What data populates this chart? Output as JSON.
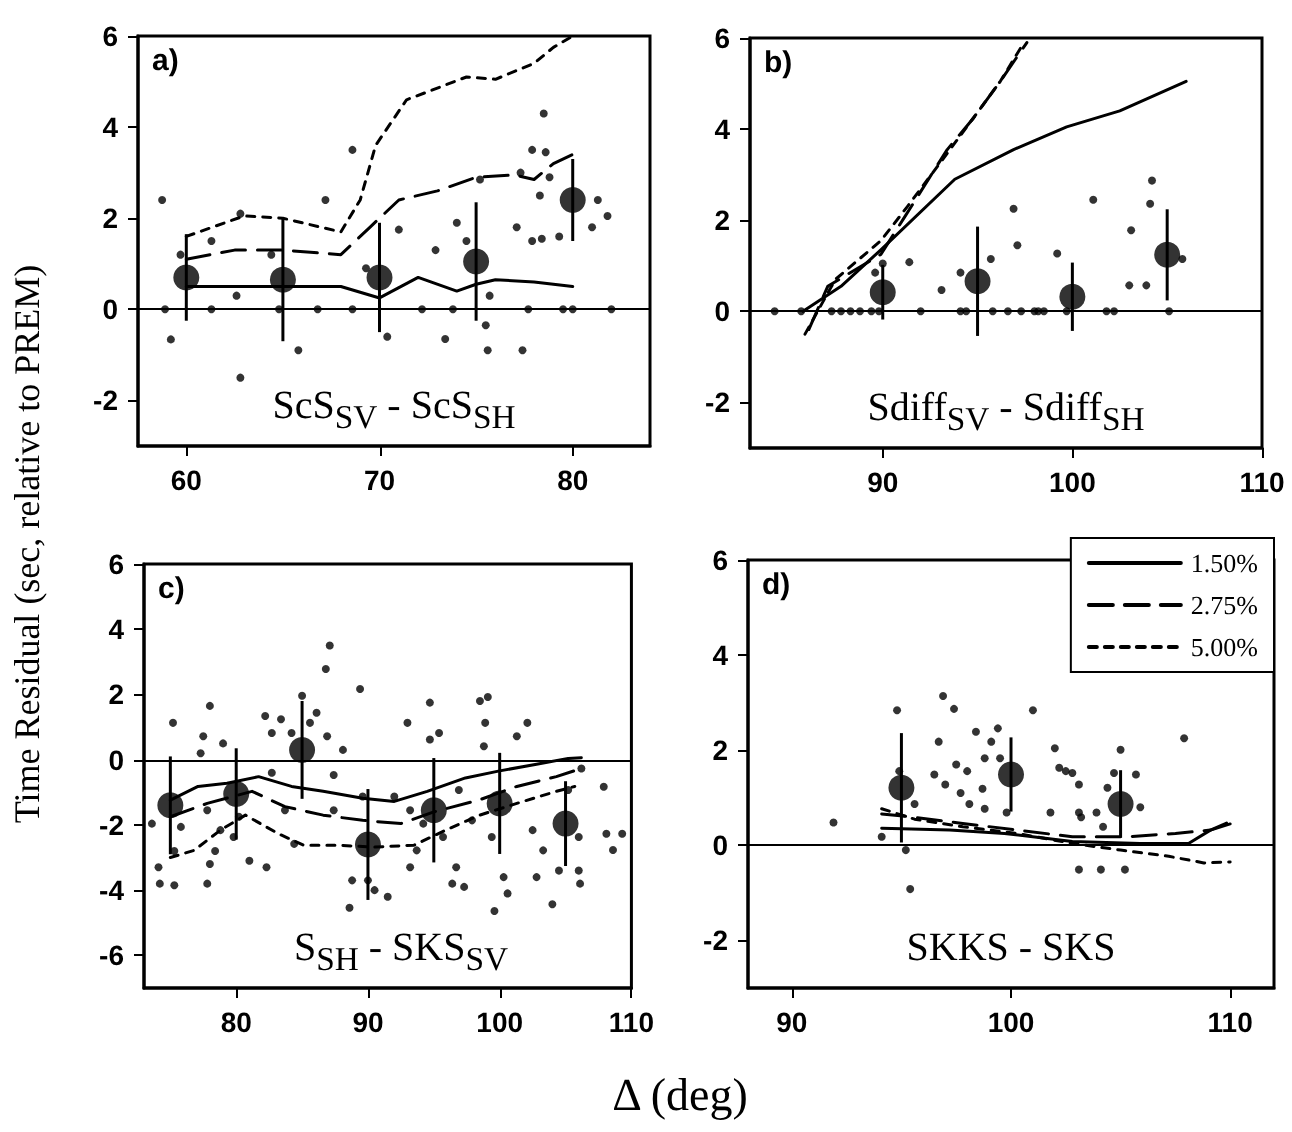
{
  "chart_data": [
    {
      "type": "scatter",
      "ylabel": "Time Residual (sec, relative to PREM)",
      "annotations": [
        "a)",
        "ScS$_{SV}$ - ScS$_{SH}$"
      ],
      "xlim": [
        57.5,
        84
      ],
      "xticks": [
        60,
        70,
        80
      ],
      "ylim": [
        -3,
        6
      ],
      "yticks": [
        -2,
        0,
        2,
        4,
        6
      ],
      "grid": false,
      "ref_lines": [
        {
          "axis": "y",
          "value": 0,
          "color": "#000000"
        }
      ],
      "series": [
        {
          "type": "scatter",
          "marker": "circle",
          "color": "#000000",
          "x": [
            58.75,
            59.2,
            58.9,
            59.7,
            61.3,
            61.3,
            62.8,
            62.6,
            62.8,
            64.8,
            64.4,
            65.8,
            66.8,
            67.2,
            68.6,
            68.6,
            69.3,
            70.4,
            71,
            72.2,
            72.9,
            73.4,
            74,
            74.5,
            73.8,
            75.2,
            75.5,
            75.6,
            75.7,
            77.1,
            77.4,
            77.7,
            77.3,
            77.9,
            78.5,
            78.6,
            78.3,
            77.9,
            78.4,
            79.3,
            78.8,
            79.5,
            81.3,
            81.8,
            81,
            80,
            82
          ],
          "values": [
            2.4,
            -0.66,
            0,
            1.2,
            0,
            1.5,
            -1.5,
            0.3,
            2.1,
            0,
            1.2,
            -0.9,
            0,
            2.4,
            3.5,
            0,
            0.9,
            -0.6,
            1.75,
            0,
            1.3,
            -0.65,
            1.9,
            1.5,
            0,
            2.85,
            -0.35,
            -0.9,
            0.3,
            1.8,
            -0.9,
            0,
            3,
            3.5,
            4.3,
            3.45,
            2.5,
            1.5,
            1.55,
            1.6,
            2.9,
            0,
            2.4,
            2.05,
            1.8,
            0,
            0
          ]
        },
        {
          "type": "scatter",
          "marker": "circle",
          "color": "#000000",
          "x": [
            60,
            65,
            70,
            75,
            80
          ],
          "values": [
            0.7,
            0.65,
            0.7,
            1.05,
            2.4
          ],
          "errors": [
            0.95,
            1.35,
            1.2,
            1.3,
            0.9
          ]
        },
        {
          "type": "line",
          "marker": "none",
          "line_style": "solid",
          "color": "#000000",
          "x": [
            60,
            65,
            68,
            70,
            72,
            74,
            75,
            76,
            78,
            80
          ],
          "values": [
            0.5,
            0.5,
            0.5,
            0.25,
            0.7,
            0.4,
            0.55,
            0.65,
            0.6,
            0.5
          ]
        },
        {
          "type": "line",
          "marker": "none",
          "line_style": "dashed",
          "color": "#000000",
          "x": [
            60,
            62.5,
            65,
            68,
            69.5,
            71,
            73,
            75,
            77,
            78,
            79,
            80
          ],
          "values": [
            1.1,
            1.3,
            1.3,
            1.2,
            1.8,
            2.4,
            2.6,
            2.9,
            2.95,
            2.85,
            3.2,
            3.4
          ]
        },
        {
          "type": "line",
          "marker": "none",
          "line_style": "dotted",
          "color": "#000000",
          "x": [
            60,
            63,
            65,
            66,
            68,
            69,
            69.8,
            71.4,
            74.5,
            76,
            78,
            79,
            80
          ],
          "values": [
            1.6,
            2.05,
            2,
            1.9,
            1.7,
            2.4,
            3.6,
            4.6,
            5.1,
            5.05,
            5.4,
            5.75,
            6
          ]
        }
      ]
    },
    {
      "type": "scatter",
      "annotations": [
        "b)",
        "Sdiff$_{SV}$ - Sdiff$_{SH}$"
      ],
      "xlim": [
        83,
        110
      ],
      "xticks": [
        90,
        100,
        110
      ],
      "ylim": [
        -3,
        6
      ],
      "yticks": [
        -2,
        0,
        2,
        4,
        6
      ],
      "grid": false,
      "ref_lines": [
        {
          "axis": "y",
          "value": 0,
          "color": "#000000"
        }
      ],
      "series": [
        {
          "type": "scatter",
          "marker": "circle",
          "color": "#000000",
          "x": [
            84.3,
            85.7,
            87.3,
            87.8,
            88.3,
            88.8,
            89.4,
            89.8,
            92,
            94.1,
            94.4,
            95.8,
            96.6,
            97.3,
            98,
            98.2,
            98.5,
            99.7,
            101.8,
            102.2,
            105.1,
            89.6,
            90,
            91.4,
            93.1,
            94.1,
            95.7,
            96.9,
            97.1,
            99.2,
            100,
            101.1,
            103.1,
            103,
            103.9,
            104.2,
            104.1,
            105.8
          ],
          "values": [
            0,
            0,
            0,
            0,
            0,
            0,
            0,
            0,
            0,
            0,
            0,
            0,
            0,
            0,
            0,
            0,
            0,
            0,
            0,
            0,
            0,
            0.85,
            1.05,
            1.08,
            0.47,
            0.85,
            1.15,
            2.25,
            1.45,
            1.27,
            null,
            2.45,
            1.78,
            0.57,
            0.57,
            2.87,
            2.36,
            1.15
          ]
        },
        {
          "type": "scatter",
          "marker": "circle",
          "color": "#000000",
          "x": [
            90,
            95,
            100,
            105
          ],
          "values": [
            0.42,
            0.66,
            0.32,
            1.24
          ],
          "errors": [
            0.6,
            1.2,
            0.75,
            1
          ]
        },
        {
          "type": "line",
          "marker": "none",
          "line_style": "solid",
          "color": "#000000",
          "x": [
            85.8,
            87.8,
            89.9,
            93.8,
            96.9,
            99.7,
            102.5,
            106
          ],
          "values": [
            0,
            0.55,
            1.35,
            2.9,
            3.55,
            4.05,
            4.4,
            5.05
          ]
        },
        {
          "type": "line",
          "marker": "none",
          "line_style": "dashed",
          "color": "#000000",
          "x": [
            86.1,
            87.1,
            89.9,
            91.2,
            93.4,
            94.8,
            96.2,
            97.6
          ],
          "values": [
            -0.4,
            0.55,
            1.25,
            2.1,
            3.55,
            4.25,
            5.05,
            5.9
          ]
        },
        {
          "type": "line",
          "marker": "none",
          "line_style": "dotted",
          "color": "#000000",
          "x": [
            85.9,
            87.5,
            89.9,
            91.3,
            93.1,
            94.7,
            96.2,
            97.3
          ],
          "values": [
            -0.5,
            0.7,
            1.55,
            2.3,
            3.3,
            4.2,
            5.05,
            5.8
          ]
        }
      ]
    },
    {
      "type": "scatter",
      "xlabel": "Δ (deg)",
      "annotations": [
        "c)",
        "S$_{SH}$ - SKS$_{SV}$"
      ],
      "xlim": [
        73,
        110
      ],
      "xticks": [
        80,
        90,
        100,
        110
      ],
      "ylim": [
        -7,
        6
      ],
      "yticks": [
        -6,
        -4,
        -2,
        0,
        2,
        4,
        6
      ],
      "grid": false,
      "ref_lines": [
        {
          "axis": "y",
          "value": 0,
          "color": "#000000"
        }
      ],
      "series": [
        {
          "type": "scatter",
          "marker": "circle",
          "color": "#000000",
          "x": [
            75.2,
            74.1,
            74.2,
            75.3,
            75.3,
            73.6,
            75.8,
            77.3,
            77.5,
            78,
            77.8,
            77.8,
            78,
            78.4,
            78.8,
            79,
            79.8,
            80.2,
            81,
            82.2,
            82.3,
            82.7,
            82.7,
            83.4,
            83.7,
            84.2,
            84.4,
            85,
            85.6,
            86.1,
            86.8,
            87.1,
            86.9,
            87.4,
            87.4,
            88.1,
            88.6,
            88.8,
            89.4,
            89.6,
            90,
            90.5,
            91.5,
            92,
            93,
            93.2,
            93.2,
            93.7,
            94.2,
            94.7,
            94.7,
            95.4,
            95.7,
            96.4,
            96.7,
            96.9,
            97.3,
            97.9,
            98.5,
            98.8,
            99.1,
            98.9,
            99.4,
            100.3,
            100.6,
            99.6,
            101.3,
            102.1,
            102.5,
            103.3,
            102.8,
            104,
            104.5,
            106,
            106,
            106.1,
            105.2,
            106.2,
            107.9,
            108.1,
            108.6,
            109.3
          ],
          "values": [
            1.13,
            -3.3,
            -3.8,
            -3.85,
            -2.8,
            -1.96,
            -2.06,
            0.2,
            0.72,
            1.65,
            -1.55,
            -3.8,
            -3.2,
            -2.8,
            -2.16,
            0.5,
            -2.37,
            -1.75,
            -3.1,
            1.34,
            -3.3,
            -0.4,
            0.82,
            1.24,
            -1.55,
            0.82,
            -2.58,
            1.96,
            1.13,
            1.44,
            2.78,
            3.5,
            0.72,
            -0.47,
            -1.55,
            0.3,
            -4.54,
            -3.7,
            2.17,
            -1.13,
            -3.7,
            -4,
            -4.2,
            -1.13,
            1.13,
            -1.55,
            -3.3,
            -2.78,
            -1.96,
            1.75,
            0.62,
            0.82,
            -2.37,
            -3.8,
            -3.3,
            -0.93,
            -3.9,
            -1.86,
            1.8,
            0.41,
            1.92,
            1.13,
            -2.37,
            -3.6,
            -4.1,
            -4.64,
            0.72,
            1.13,
            -2.16,
            -2.78,
            -3.6,
            -4.43,
            -3.4,
            -2.37,
            -3.4,
            -3.8,
            -0.93,
            -0.27,
            -0.83,
            -2.27,
            -2.77,
            -2.27
          ]
        },
        {
          "type": "scatter",
          "marker": "circle",
          "color": "#000000",
          "x": [
            75,
            80,
            85,
            90,
            95,
            100,
            105
          ],
          "values": [
            -1.4,
            -1.05,
            0.3,
            -2.6,
            -1.55,
            -1.34,
            -1.96
          ],
          "errors": [
            1.5,
            1.4,
            1.5,
            1.7,
            1.6,
            1.55,
            1.3
          ]
        },
        {
          "type": "line",
          "marker": "none",
          "line_style": "solid",
          "color": "#000000",
          "x": [
            75,
            77.1,
            79.3,
            81.7,
            84.2,
            86.6,
            89.6,
            92,
            94.5,
            97.4,
            99.9,
            102.8,
            105.2,
            106.2
          ],
          "values": [
            -1.24,
            -0.82,
            -0.72,
            -0.52,
            -0.82,
            -0.97,
            -1.18,
            -1.28,
            -0.97,
            -0.56,
            -0.35,
            -0.14,
            0.04,
            0.06
          ]
        },
        {
          "type": "line",
          "marker": "none",
          "line_style": "dashed",
          "color": "#000000",
          "x": [
            75,
            77.8,
            81.2,
            83.7,
            86.6,
            89.6,
            92.5,
            95,
            98.4,
            101.3,
            104.3,
            106.2
          ],
          "values": [
            -1.75,
            -1.34,
            -0.97,
            -1.44,
            -1.7,
            -1.86,
            -1.96,
            -1.6,
            -1.24,
            -0.82,
            -0.52,
            -0.27
          ]
        },
        {
          "type": "line",
          "marker": "none",
          "line_style": "dotted",
          "color": "#000000",
          "x": [
            75,
            76.8,
            78.8,
            80.7,
            83.2,
            85.1,
            87.6,
            90.5,
            93.5,
            95.9,
            98.4,
            101.3,
            104.3,
            105.7
          ],
          "values": [
            -3,
            -2.78,
            -2.16,
            -1.7,
            -2.27,
            -2.62,
            -2.62,
            -2.68,
            -2.62,
            -2.16,
            -1.71,
            -1.34,
            -0.97,
            -0.82
          ]
        }
      ]
    },
    {
      "type": "scatter",
      "annotations": [
        "d)",
        "SKKS - SKS"
      ],
      "xlim": [
        88,
        112
      ],
      "xticks": [
        90,
        100,
        110
      ],
      "ylim": [
        -3,
        6
      ],
      "yticks": [
        -2,
        0,
        2,
        4,
        6
      ],
      "grid": false,
      "legend": "top right",
      "ref_lines": [
        {
          "axis": "y",
          "value": 0,
          "color": "#000000"
        }
      ],
      "series": [
        {
          "type": "scatter",
          "marker": "circle",
          "color": "#000000",
          "x": [
            91.9,
            94.1,
            94.8,
            94.9,
            95.2,
            95.4,
            95.6,
            96.5,
            96.7,
            96.9,
            97,
            97.4,
            97.5,
            97.7,
            98,
            98.1,
            98.4,
            98.7,
            98.8,
            98.8,
            99.1,
            99.4,
            99.5,
            99.8,
            101,
            101.8,
            102,
            102.2,
            102.5,
            102.8,
            103.1,
            103.1,
            103.2,
            103.9,
            103.1,
            104.1,
            105.2,
            104.2,
            104.4,
            104.7,
            105,
            105.2,
            105.7,
            105.9,
            107.9
          ],
          "values": [
            0.48,
            0.18,
            2.84,
            1.56,
            -0.1,
            -0.92,
            0.87,
            1.49,
            2.18,
            3.14,
            1.28,
            2.87,
            1.7,
            1.1,
            1.56,
            0.87,
            2.39,
            1.19,
            0.77,
            1.83,
            2.18,
            2.46,
            1.83,
            0.69,
            2.84,
            0.69,
            2.04,
            1.63,
            1.56,
            1.52,
            1.28,
            0.69,
            0.59,
            0.69,
            -0.51,
            -0.51,
            -0.51,
            0.39,
            1.21,
            1.52,
            2.01,
            null,
            1.49,
            0.8,
            2.25
          ]
        },
        {
          "type": "scatter",
          "marker": "circle",
          "color": "#000000",
          "x": [
            95,
            100,
            105
          ],
          "values": [
            1.21,
            1.49,
            0.87
          ],
          "errors": [
            1.15,
            0.78,
            0.71
          ]
        },
        {
          "type": "line",
          "name": "1.50%",
          "marker": "none",
          "line_style": "solid",
          "color": "#000000",
          "x": [
            94.1,
            95,
            97.2,
            99.7,
            102.8,
            105.9,
            108.1,
            109.1,
            110
          ],
          "values": [
            0.36,
            0.35,
            0.32,
            0.25,
            0.08,
            0.04,
            0.04,
            0.32,
            0.45
          ]
        },
        {
          "type": "line",
          "name": "2.75%",
          "marker": "none",
          "line_style": "dashed",
          "color": "#000000",
          "x": [
            94.1,
            95.6,
            97.8,
            100.3,
            102.8,
            105.3,
            107.5,
            109.1,
            110
          ],
          "values": [
            0.66,
            0.59,
            0.46,
            0.32,
            0.18,
            0.18,
            0.25,
            0.32,
            0.5
          ]
        },
        {
          "type": "line",
          "name": "5.00%",
          "marker": "none",
          "line_style": "dotted",
          "color": "#000000",
          "x": [
            94.1,
            95.6,
            97.8,
            100.3,
            102.8,
            105,
            107.2,
            108.8,
            110
          ],
          "values": [
            0.77,
            0.55,
            0.39,
            0.25,
            0.04,
            -0.1,
            -0.23,
            -0.37,
            -0.35
          ]
        }
      ]
    }
  ]
}
